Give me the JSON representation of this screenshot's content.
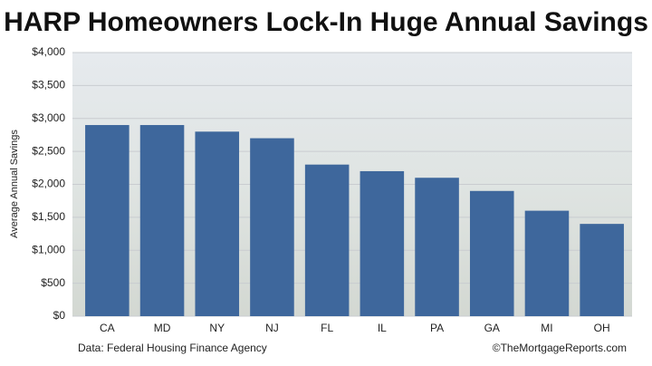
{
  "chart_data": {
    "type": "bar",
    "title": "HARP Homeowners Lock-In Huge Annual Savings",
    "y_label": "Average Annual Savings",
    "categories": [
      "CA",
      "MD",
      "NY",
      "NJ",
      "FL",
      "IL",
      "PA",
      "GA",
      "MI",
      "OH"
    ],
    "values": [
      2900,
      2900,
      2800,
      2700,
      2300,
      2200,
      2100,
      1900,
      1600,
      1400
    ],
    "color": "#3e679c",
    "ylim": [
      0,
      4000
    ],
    "yticks": [
      {
        "value": 0,
        "label": "$0"
      },
      {
        "value": 500,
        "label": "$500"
      },
      {
        "value": 1000,
        "label": "$1,000"
      },
      {
        "value": 1500,
        "label": "$1,500"
      },
      {
        "value": 2000,
        "label": "$2,000"
      },
      {
        "value": 2500,
        "label": "$2,500"
      },
      {
        "value": 3000,
        "label": "$3,000"
      },
      {
        "value": 3500,
        "label": "$3,500"
      },
      {
        "value": 4000,
        "label": "$4,000"
      }
    ],
    "grid": true,
    "source": "Data: Federal Housing Finance Agency",
    "credit": "©TheMortgageReports.com"
  }
}
